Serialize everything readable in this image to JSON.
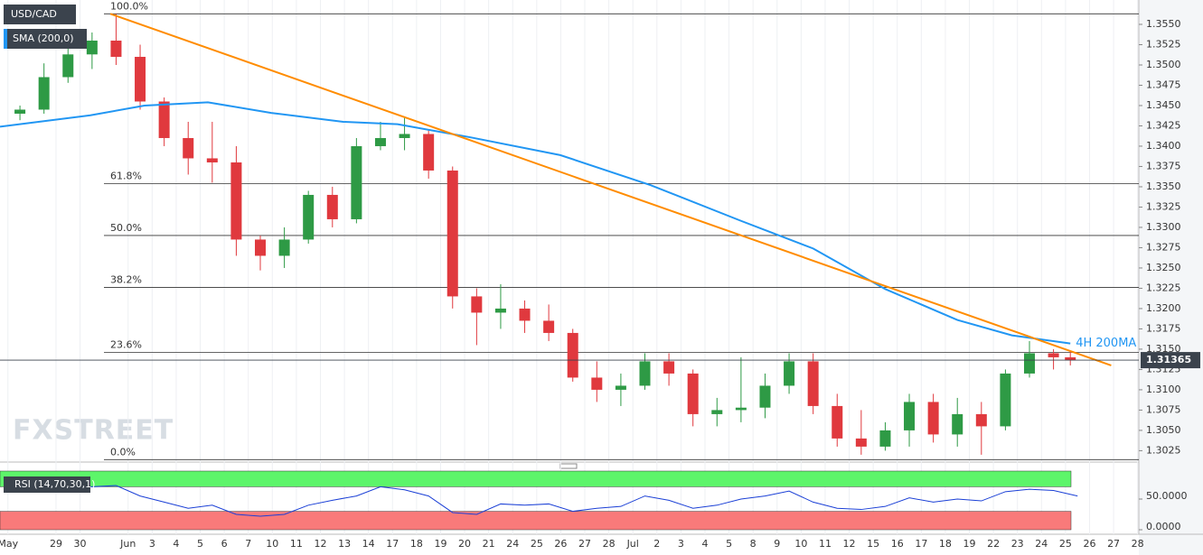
{
  "chart_data": {
    "type": "candlestick",
    "symbol": "USD/CAD",
    "indicator_label": "SMA (200,0)",
    "watermark": "FXSTREET",
    "xlim": [
      -2.33,
      45.05
    ],
    "ylim": [
      1.3011,
      1.358
    ],
    "xticks": [
      {
        "value": -2,
        "label": "May"
      },
      {
        "value": 0,
        "label": "29"
      },
      {
        "value": 1,
        "label": "30"
      },
      {
        "value": 3,
        "label": "Jun"
      },
      {
        "value": 4,
        "label": "3"
      },
      {
        "value": 5,
        "label": "4"
      },
      {
        "value": 6,
        "label": "5"
      },
      {
        "value": 7,
        "label": "6"
      },
      {
        "value": 8,
        "label": "7"
      },
      {
        "value": 9,
        "label": "10"
      },
      {
        "value": 10,
        "label": "11"
      },
      {
        "value": 11,
        "label": "12"
      },
      {
        "value": 12,
        "label": "13"
      },
      {
        "value": 13,
        "label": "14"
      },
      {
        "value": 14,
        "label": "17"
      },
      {
        "value": 15,
        "label": "18"
      },
      {
        "value": 16,
        "label": "19"
      },
      {
        "value": 17,
        "label": "20"
      },
      {
        "value": 18,
        "label": "21"
      },
      {
        "value": 19,
        "label": "24"
      },
      {
        "value": 20,
        "label": "25"
      },
      {
        "value": 21,
        "label": "26"
      },
      {
        "value": 22,
        "label": "27"
      },
      {
        "value": 23,
        "label": "28"
      },
      {
        "value": 24,
        "label": "Jul"
      },
      {
        "value": 25,
        "label": "2"
      },
      {
        "value": 26,
        "label": "3"
      },
      {
        "value": 27,
        "label": "4"
      },
      {
        "value": 28,
        "label": "5"
      },
      {
        "value": 29,
        "label": "8"
      },
      {
        "value": 30,
        "label": "9"
      },
      {
        "value": 31,
        "label": "10"
      },
      {
        "value": 32,
        "label": "11"
      },
      {
        "value": 33,
        "label": "12"
      },
      {
        "value": 34,
        "label": "15"
      },
      {
        "value": 35,
        "label": "16"
      },
      {
        "value": 36,
        "label": "17"
      },
      {
        "value": 37,
        "label": "18"
      },
      {
        "value": 38,
        "label": "19"
      },
      {
        "value": 39,
        "label": "22"
      },
      {
        "value": 40,
        "label": "23"
      },
      {
        "value": 41,
        "label": "24"
      },
      {
        "value": 42,
        "label": "25"
      },
      {
        "value": 43,
        "label": "26"
      },
      {
        "value": 44,
        "label": "27"
      },
      {
        "value": 45,
        "label": "28"
      }
    ],
    "yticks": [
      {
        "value": 1.3025,
        "label": "1.3025"
      },
      {
        "value": 1.305,
        "label": "1.3050"
      },
      {
        "value": 1.3075,
        "label": "1.3075"
      },
      {
        "value": 1.31,
        "label": "1.3100"
      },
      {
        "value": 1.3125,
        "label": "1.3125"
      },
      {
        "value": 1.315,
        "label": "1.3150"
      },
      {
        "value": 1.3175,
        "label": "1.3175"
      },
      {
        "value": 1.32,
        "label": "1.3200"
      },
      {
        "value": 1.3225,
        "label": "1.3225"
      },
      {
        "value": 1.325,
        "label": "1.3250"
      },
      {
        "value": 1.3275,
        "label": "1.3275"
      },
      {
        "value": 1.33,
        "label": "1.3300"
      },
      {
        "value": 1.3325,
        "label": "1.3325"
      },
      {
        "value": 1.335,
        "label": "1.3350"
      },
      {
        "value": 1.3375,
        "label": "1.3375"
      },
      {
        "value": 1.34,
        "label": "1.3400"
      },
      {
        "value": 1.3425,
        "label": "1.3425"
      },
      {
        "value": 1.345,
        "label": "1.3450"
      },
      {
        "value": 1.3475,
        "label": "1.3475"
      },
      {
        "value": 1.35,
        "label": "1.3500"
      },
      {
        "value": 1.3525,
        "label": "1.3525"
      },
      {
        "value": 1.355,
        "label": "1.3550"
      }
    ],
    "grid": true,
    "up_color": "#2e9a45",
    "down_color": "#e0393e",
    "candles": {
      "x": [
        -1.5,
        -0.5,
        0.5,
        1.5,
        2.5,
        3.5,
        4.5,
        5.5,
        6.5,
        7.5,
        8.5,
        9.5,
        10.5,
        11.5,
        12.5,
        13.5,
        14.5,
        15.5,
        16.5,
        17.5,
        18.5,
        19.5,
        20.5,
        21.5,
        22.5,
        23.5,
        24.5,
        25.5,
        26.5,
        27.5,
        28.5,
        29.5,
        30.5,
        31.5,
        32.5,
        33.5,
        34.5,
        35.5,
        36.5,
        37.5,
        38.5,
        39.5,
        40.5,
        41.5,
        42.2
      ],
      "open": [
        1.344,
        1.3445,
        1.3485,
        1.3513,
        1.353,
        1.351,
        1.3455,
        1.341,
        1.3385,
        1.338,
        1.3285,
        1.3265,
        1.3285,
        1.334,
        1.331,
        1.34,
        1.341,
        1.3415,
        1.337,
        1.3215,
        1.3195,
        1.32,
        1.3185,
        1.317,
        1.3115,
        1.31,
        1.3105,
        1.3135,
        1.312,
        1.307,
        1.3075,
        1.3078,
        1.3105,
        1.3135,
        1.308,
        1.304,
        1.303,
        1.305,
        1.3085,
        1.3045,
        1.307,
        1.3055,
        1.312,
        1.3145,
        1.314
      ],
      "high": [
        1.345,
        1.3502,
        1.3535,
        1.354,
        1.3563,
        1.3525,
        1.346,
        1.343,
        1.343,
        1.34,
        1.329,
        1.33,
        1.3345,
        1.335,
        1.341,
        1.343,
        1.3435,
        1.342,
        1.3375,
        1.3225,
        1.323,
        1.321,
        1.3205,
        1.3175,
        1.3135,
        1.312,
        1.3145,
        1.3145,
        1.3125,
        1.309,
        1.314,
        1.312,
        1.3145,
        1.3145,
        1.3095,
        1.3075,
        1.306,
        1.3095,
        1.3095,
        1.309,
        1.3085,
        1.3125,
        1.316,
        1.315,
        1.3148
      ],
      "low": [
        1.3432,
        1.344,
        1.3478,
        1.3495,
        1.35,
        1.3445,
        1.34,
        1.3365,
        1.3355,
        1.3265,
        1.3247,
        1.325,
        1.328,
        1.33,
        1.3305,
        1.3395,
        1.3395,
        1.336,
        1.32,
        1.3155,
        1.3175,
        1.317,
        1.316,
        1.311,
        1.3085,
        1.308,
        1.31,
        1.3105,
        1.3055,
        1.3055,
        1.306,
        1.3065,
        1.3095,
        1.307,
        1.303,
        1.302,
        1.3025,
        1.303,
        1.3035,
        1.303,
        1.302,
        1.305,
        1.3115,
        1.3125,
        1.313
      ],
      "close": [
        1.3445,
        1.3485,
        1.3513,
        1.353,
        1.351,
        1.3455,
        1.341,
        1.3385,
        1.338,
        1.3285,
        1.3265,
        1.3285,
        1.334,
        1.331,
        1.34,
        1.341,
        1.3415,
        1.337,
        1.3215,
        1.3195,
        1.32,
        1.3185,
        1.317,
        1.3115,
        1.31,
        1.3105,
        1.3135,
        1.312,
        1.307,
        1.3075,
        1.3078,
        1.3105,
        1.3135,
        1.308,
        1.304,
        1.303,
        1.305,
        1.3085,
        1.3045,
        1.307,
        1.3055,
        1.312,
        1.3145,
        1.314,
        1.31365
      ]
    },
    "sma": {
      "name": "4H 200MA",
      "color": "#2196f3",
      "x": [
        -2.33,
        1.43,
        3.68,
        6.32,
        8.95,
        11.95,
        14.21,
        17.22,
        20.98,
        24.74,
        28.5,
        31.5,
        34.5,
        37.5,
        39.77,
        42.2
      ],
      "values": [
        1.3424,
        1.3438,
        1.345,
        1.3454,
        1.3441,
        1.343,
        1.3427,
        1.3411,
        1.3389,
        1.3352,
        1.3308,
        1.3274,
        1.3224,
        1.3186,
        1.3167,
        1.3157
      ]
    },
    "trendline": {
      "color": "#ff8c00",
      "x": [
        2.26,
        43.9
      ],
      "values": [
        1.3563,
        1.313
      ]
    },
    "fib_levels": [
      {
        "label": "100.0%",
        "value": 1.3563
      },
      {
        "label": "61.8%",
        "value": 1.3354
      },
      {
        "label": "50.0%",
        "value": 1.329
      },
      {
        "label": "38.2%",
        "value": 1.3226
      },
      {
        "label": "23.6%",
        "value": 1.3146
      },
      {
        "label": "0.0%",
        "value": 1.3014
      }
    ],
    "last_price": 1.31365,
    "rsi": {
      "label": "RSI (14,70,30,1)",
      "color": "#1a3fd6",
      "ylim": [
        0,
        100
      ],
      "overbought": 70,
      "oversold": 30,
      "yticks": [
        {
          "value": 50,
          "label": "50.0000"
        },
        {
          "value": 0,
          "label": "0.0000"
        }
      ],
      "x": [
        -2,
        -1,
        0,
        1,
        2,
        3,
        4,
        5,
        6,
        7,
        8,
        9,
        10,
        11,
        12,
        13,
        14,
        15,
        16,
        17,
        18,
        19,
        20,
        21,
        22,
        23,
        24,
        25,
        26,
        27,
        28,
        29,
        30,
        31,
        32,
        33,
        34,
        35,
        36,
        37,
        38,
        39,
        40,
        41,
        42
      ],
      "values": [
        68,
        70,
        72,
        70,
        72,
        55,
        45,
        35,
        40,
        25,
        22,
        25,
        40,
        48,
        55,
        70,
        65,
        55,
        28,
        25,
        42,
        40,
        42,
        30,
        35,
        38,
        55,
        48,
        35,
        40,
        50,
        55,
        63,
        45,
        35,
        33,
        38,
        52,
        45,
        50,
        47,
        62,
        66,
        64,
        55
      ]
    }
  }
}
